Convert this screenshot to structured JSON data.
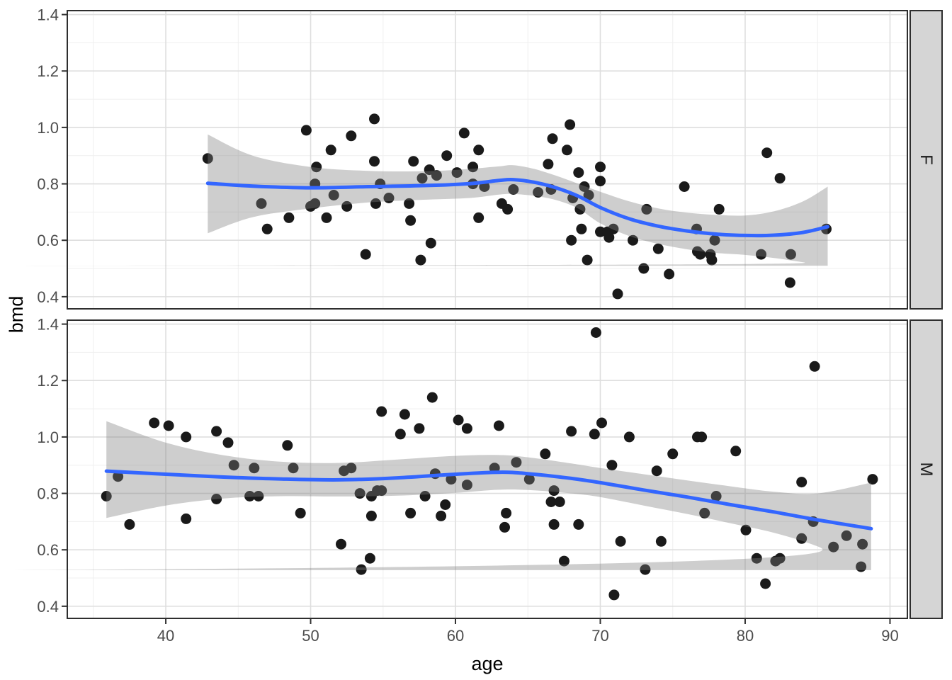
{
  "chart_data": {
    "type": "scatter",
    "title": "",
    "xlabel": "age",
    "ylabel": "bmd",
    "grid": true,
    "legend_position": "none",
    "x_domain": [
      33.2,
      91.2
    ],
    "y_domain": [
      0.357,
      1.414
    ],
    "x_ticks": [
      40,
      50,
      60,
      70,
      80,
      90
    ],
    "x_tick_labels": [
      "40",
      "50",
      "60",
      "70",
      "80",
      "90"
    ],
    "x_minor_ticks": [
      35,
      45,
      55,
      65,
      75,
      85
    ],
    "y_ticks": [
      0.4,
      0.6,
      0.8,
      1.0,
      1.2,
      1.4
    ],
    "y_tick_labels": [
      "0.4",
      "0.6",
      "0.8",
      "1.0",
      "1.2",
      "1.4"
    ],
    "y_minor_ticks": [
      0.5,
      0.7,
      0.9,
      1.1,
      1.3
    ],
    "colors": {
      "point": "#1a1a1a",
      "smooth_line": "#3366ff",
      "band": "#7d7d7d",
      "band_opacity": 0.38,
      "grid_major": "#dedede",
      "grid_minor": "#efefef",
      "panel_border": "#2e2e2e",
      "strip_bg": "#d5d5d5",
      "tick": "#333333"
    },
    "facets": [
      {
        "label": "F",
        "points": [
          [
            42.9,
            0.89
          ],
          [
            46.6,
            0.73
          ],
          [
            47.0,
            0.64
          ],
          [
            48.5,
            0.68
          ],
          [
            49.7,
            0.99
          ],
          [
            50.3,
            0.8
          ],
          [
            50.4,
            0.86
          ],
          [
            50.0,
            0.72
          ],
          [
            50.3,
            0.73
          ],
          [
            51.1,
            0.68
          ],
          [
            51.4,
            0.92
          ],
          [
            51.6,
            0.76
          ],
          [
            52.5,
            0.72
          ],
          [
            52.8,
            0.97
          ],
          [
            53.8,
            0.55
          ],
          [
            54.4,
            1.03
          ],
          [
            54.4,
            0.88
          ],
          [
            54.5,
            0.73
          ],
          [
            54.8,
            0.8
          ],
          [
            55.4,
            0.75
          ],
          [
            56.8,
            0.73
          ],
          [
            56.9,
            0.67
          ],
          [
            57.1,
            0.88
          ],
          [
            57.6,
            0.53
          ],
          [
            57.7,
            0.82
          ],
          [
            58.2,
            0.85
          ],
          [
            58.3,
            0.59
          ],
          [
            58.7,
            0.83
          ],
          [
            59.4,
            0.9
          ],
          [
            60.1,
            0.84
          ],
          [
            60.6,
            0.98
          ],
          [
            61.2,
            0.86
          ],
          [
            61.2,
            0.8
          ],
          [
            61.6,
            0.92
          ],
          [
            61.6,
            0.68
          ],
          [
            62.0,
            0.79
          ],
          [
            63.2,
            0.73
          ],
          [
            63.6,
            0.71
          ],
          [
            64.0,
            0.78
          ],
          [
            65.7,
            0.77
          ],
          [
            66.4,
            0.87
          ],
          [
            66.6,
            0.78
          ],
          [
            66.7,
            0.96
          ],
          [
            67.7,
            0.92
          ],
          [
            67.9,
            1.01
          ],
          [
            68.0,
            0.6
          ],
          [
            68.1,
            0.75
          ],
          [
            68.5,
            0.84
          ],
          [
            68.6,
            0.71
          ],
          [
            68.7,
            0.64
          ],
          [
            68.9,
            0.79
          ],
          [
            69.1,
            0.53
          ],
          [
            69.2,
            0.76
          ],
          [
            70.0,
            0.86
          ],
          [
            70.0,
            0.81
          ],
          [
            70.0,
            0.63
          ],
          [
            70.5,
            0.63
          ],
          [
            70.6,
            0.61
          ],
          [
            70.9,
            0.64
          ],
          [
            71.2,
            0.41
          ],
          [
            72.25,
            0.6
          ],
          [
            73.0,
            0.5
          ],
          [
            73.2,
            0.71
          ],
          [
            74.0,
            0.57
          ],
          [
            74.75,
            0.48
          ],
          [
            75.8,
            0.79
          ],
          [
            76.65,
            0.64
          ],
          [
            76.7,
            0.56
          ],
          [
            76.9,
            0.55
          ],
          [
            77.6,
            0.55
          ],
          [
            77.7,
            0.53
          ],
          [
            77.9,
            0.6
          ],
          [
            78.2,
            0.71
          ],
          [
            81.1,
            0.55
          ],
          [
            81.5,
            0.91
          ],
          [
            82.4,
            0.82
          ],
          [
            83.1,
            0.45
          ],
          [
            83.15,
            0.55
          ],
          [
            85.6,
            0.64
          ]
        ],
        "smooth_line": [
          [
            42.9,
            0.802
          ],
          [
            46,
            0.792
          ],
          [
            50,
            0.786
          ],
          [
            54,
            0.79
          ],
          [
            58,
            0.794
          ],
          [
            61,
            0.801
          ],
          [
            63,
            0.812
          ],
          [
            64,
            0.815
          ],
          [
            65.5,
            0.805
          ],
          [
            67,
            0.785
          ],
          [
            68.5,
            0.756
          ],
          [
            70,
            0.716
          ],
          [
            72,
            0.676
          ],
          [
            74,
            0.65
          ],
          [
            76,
            0.633
          ],
          [
            78,
            0.622
          ],
          [
            80,
            0.617
          ],
          [
            82,
            0.618
          ],
          [
            84,
            0.628
          ],
          [
            85.7,
            0.648
          ]
        ],
        "band_upper": [
          [
            42.9,
            0.975
          ],
          [
            46,
            0.9
          ],
          [
            50,
            0.86
          ],
          [
            54,
            0.846
          ],
          [
            58,
            0.845
          ],
          [
            61,
            0.853
          ],
          [
            63,
            0.862
          ],
          [
            64,
            0.866
          ],
          [
            65.5,
            0.852
          ],
          [
            67,
            0.828
          ],
          [
            68.5,
            0.8
          ],
          [
            70,
            0.772
          ],
          [
            72,
            0.738
          ],
          [
            74,
            0.713
          ],
          [
            76,
            0.698
          ],
          [
            78,
            0.69
          ],
          [
            80,
            0.688
          ],
          [
            82,
            0.703
          ],
          [
            84,
            0.738
          ],
          [
            85.7,
            0.79
          ]
        ],
        "band_lower": [
          [
            42.9,
            0.625
          ],
          [
            46,
            0.682
          ],
          [
            50,
            0.713
          ],
          [
            54,
            0.734
          ],
          [
            58,
            0.744
          ],
          [
            61,
            0.75
          ],
          [
            63,
            0.762
          ],
          [
            64,
            0.764
          ],
          [
            65.5,
            0.757
          ],
          [
            67,
            0.742
          ],
          [
            68.5,
            0.712
          ],
          [
            70,
            0.66
          ],
          [
            72,
            0.615
          ],
          [
            74,
            0.587
          ],
          [
            76,
            0.568
          ],
          [
            78,
            0.555
          ],
          [
            80,
            0.548
          ],
          [
            82,
            0.537
          ],
          [
            84,
            0.522
          ],
          [
            85.7,
            0.51
          ]
        ]
      },
      {
        "label": "M",
        "points": [
          [
            35.9,
            0.79
          ],
          [
            36.7,
            0.86
          ],
          [
            37.5,
            0.69
          ],
          [
            39.2,
            1.05
          ],
          [
            40.2,
            1.04
          ],
          [
            41.4,
            1.0
          ],
          [
            41.4,
            0.71
          ],
          [
            43.5,
            1.02
          ],
          [
            43.5,
            0.78
          ],
          [
            44.3,
            0.98
          ],
          [
            44.7,
            0.9
          ],
          [
            45.8,
            0.79
          ],
          [
            46.1,
            0.89
          ],
          [
            46.4,
            0.79
          ],
          [
            48.4,
            0.97
          ],
          [
            48.8,
            0.89
          ],
          [
            49.3,
            0.73
          ],
          [
            52.1,
            0.62
          ],
          [
            52.3,
            0.88
          ],
          [
            52.8,
            0.89
          ],
          [
            53.4,
            0.8
          ],
          [
            53.5,
            0.53
          ],
          [
            54.1,
            0.57
          ],
          [
            54.2,
            0.79
          ],
          [
            54.2,
            0.72
          ],
          [
            54.6,
            0.81
          ],
          [
            54.9,
            0.81
          ],
          [
            54.9,
            1.09
          ],
          [
            56.2,
            1.01
          ],
          [
            56.5,
            1.08
          ],
          [
            56.9,
            0.73
          ],
          [
            57.5,
            1.03
          ],
          [
            57.9,
            0.79
          ],
          [
            58.4,
            1.14
          ],
          [
            58.6,
            0.87
          ],
          [
            59.0,
            0.72
          ],
          [
            59.3,
            0.76
          ],
          [
            59.7,
            0.85
          ],
          [
            60.2,
            1.06
          ],
          [
            60.8,
            1.03
          ],
          [
            60.8,
            0.83
          ],
          [
            62.7,
            0.89
          ],
          [
            63.0,
            1.04
          ],
          [
            63.4,
            0.68
          ],
          [
            63.5,
            0.73
          ],
          [
            64.2,
            0.91
          ],
          [
            65.1,
            0.85
          ],
          [
            66.2,
            0.94
          ],
          [
            66.6,
            0.77
          ],
          [
            66.8,
            0.81
          ],
          [
            66.8,
            0.69
          ],
          [
            67.2,
            0.77
          ],
          [
            67.5,
            0.56
          ],
          [
            68.0,
            1.02
          ],
          [
            68.5,
            0.69
          ],
          [
            69.6,
            1.01
          ],
          [
            69.7,
            1.37
          ],
          [
            70.1,
            1.05
          ],
          [
            70.8,
            0.9
          ],
          [
            70.95,
            0.44
          ],
          [
            71.4,
            0.63
          ],
          [
            72.0,
            1.0
          ],
          [
            73.1,
            0.53
          ],
          [
            73.9,
            0.88
          ],
          [
            74.2,
            0.63
          ],
          [
            75.0,
            0.94
          ],
          [
            76.7,
            1.0
          ],
          [
            77.0,
            1.0
          ],
          [
            77.2,
            0.73
          ],
          [
            78.0,
            0.79
          ],
          [
            79.35,
            0.95
          ],
          [
            80.05,
            0.67
          ],
          [
            80.8,
            0.57
          ],
          [
            81.4,
            0.48
          ],
          [
            82.1,
            0.56
          ],
          [
            82.4,
            0.57
          ],
          [
            83.9,
            0.84
          ],
          [
            83.9,
            0.64
          ],
          [
            84.7,
            0.7
          ],
          [
            84.8,
            1.25
          ],
          [
            86.1,
            0.61
          ],
          [
            87.0,
            0.65
          ],
          [
            88.0,
            0.54
          ],
          [
            88.1,
            0.62
          ],
          [
            88.8,
            0.85
          ]
        ],
        "smooth_line": [
          [
            35.9,
            0.879
          ],
          [
            40,
            0.868
          ],
          [
            44,
            0.858
          ],
          [
            48,
            0.851
          ],
          [
            52,
            0.848
          ],
          [
            56,
            0.855
          ],
          [
            60,
            0.868
          ],
          [
            63,
            0.875
          ],
          [
            65,
            0.87
          ],
          [
            68,
            0.853
          ],
          [
            70,
            0.838
          ],
          [
            73,
            0.812
          ],
          [
            76,
            0.787
          ],
          [
            79,
            0.76
          ],
          [
            82,
            0.734
          ],
          [
            85,
            0.706
          ],
          [
            88.7,
            0.675
          ]
        ],
        "band_upper": [
          [
            35.9,
            1.056
          ],
          [
            40,
            0.98
          ],
          [
            44,
            0.935
          ],
          [
            48,
            0.912
          ],
          [
            52,
            0.908
          ],
          [
            56,
            0.92
          ],
          [
            60,
            0.933
          ],
          [
            63,
            0.936
          ],
          [
            65,
            0.928
          ],
          [
            68,
            0.906
          ],
          [
            70,
            0.89
          ],
          [
            73,
            0.868
          ],
          [
            76,
            0.846
          ],
          [
            79,
            0.825
          ],
          [
            82,
            0.806
          ],
          [
            85,
            0.8
          ],
          [
            88.7,
            0.838
          ]
        ],
        "band_lower": [
          [
            35.9,
            0.713
          ],
          [
            40,
            0.757
          ],
          [
            44,
            0.782
          ],
          [
            48,
            0.79
          ],
          [
            52,
            0.789
          ],
          [
            56,
            0.792
          ],
          [
            60,
            0.802
          ],
          [
            63,
            0.813
          ],
          [
            65,
            0.812
          ],
          [
            68,
            0.8
          ],
          [
            70,
            0.787
          ],
          [
            73,
            0.757
          ],
          [
            76,
            0.727
          ],
          [
            79,
            0.694
          ],
          [
            82,
            0.66
          ],
          [
            85,
            0.612
          ],
          [
            88.7,
            0.528
          ]
        ]
      }
    ]
  }
}
